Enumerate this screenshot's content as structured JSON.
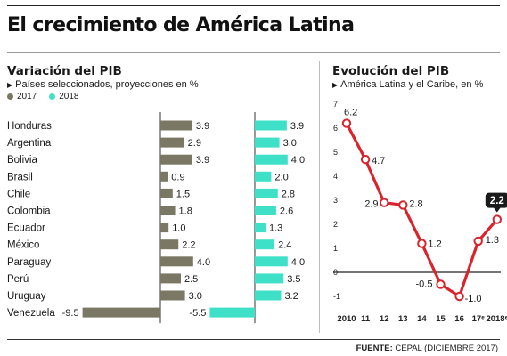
{
  "header": {
    "title": "El crecimiento de América Latina"
  },
  "colors": {
    "c2017": "#7a7864",
    "c2018": "#3fe0c8",
    "line": "#d9232d",
    "axis": "#222222"
  },
  "source": {
    "label": "FUENTE:",
    "text": "CEPAL (DICIEMBRE 2017)"
  },
  "chart_data": [
    {
      "type": "bar",
      "title": "Variación del PIB",
      "subtitle": "Países seleccionados, proyecciones en %",
      "categories": [
        "Honduras",
        "Argentina",
        "Bolivia",
        "Brasil",
        "Chile",
        "Colombia",
        "Ecuador",
        "México",
        "Paraguay",
        "Perú",
        "Uruguay",
        "Venezuela"
      ],
      "series": [
        {
          "name": "2017",
          "values": [
            3.9,
            2.9,
            3.9,
            0.9,
            1.5,
            1.8,
            1.0,
            2.2,
            4.0,
            2.5,
            3.0,
            -9.5
          ]
        },
        {
          "name": "2018",
          "values": [
            3.9,
            3.0,
            4.0,
            2.0,
            2.8,
            2.6,
            1.3,
            2.4,
            4.0,
            3.5,
            3.2,
            -5.5
          ]
        }
      ],
      "value_labels": {
        "2017": [
          "3.9",
          "2.9",
          "3.9",
          "0.9",
          "1.5",
          "1.8",
          "1.0",
          "2.2",
          "4.0",
          "2.5",
          "3.0",
          "-9.5"
        ],
        "2018": [
          "3.9",
          "3.0",
          "4.0",
          "2.0",
          "2.8",
          "2.6",
          "1.3",
          "2.4",
          "4.0",
          "3.5",
          "3.2",
          "-5.5"
        ]
      },
      "legend_placement": "top-left",
      "orientation": "horizontal"
    },
    {
      "type": "line",
      "title": "Evolución del PIB",
      "subtitle": "América Latina y el Caribe, en %",
      "x": [
        "2010",
        "11",
        "12",
        "13",
        "14",
        "15",
        "16",
        "17ᵉ",
        "2018ᵉ"
      ],
      "values": [
        6.2,
        4.7,
        2.9,
        2.8,
        1.2,
        -0.5,
        -1.0,
        1.3,
        2.2
      ],
      "value_labels": [
        "6.2",
        "4.7",
        "2.9",
        "2.8",
        "1.2",
        "-0.5",
        "-1.0",
        "1.3",
        "2.2"
      ],
      "highlight_index": 8,
      "ylim": [
        -1,
        7
      ],
      "yticks": [
        "-1",
        "0",
        "1",
        "2",
        "3",
        "4",
        "5",
        "6",
        "7"
      ],
      "grid": false
    }
  ]
}
